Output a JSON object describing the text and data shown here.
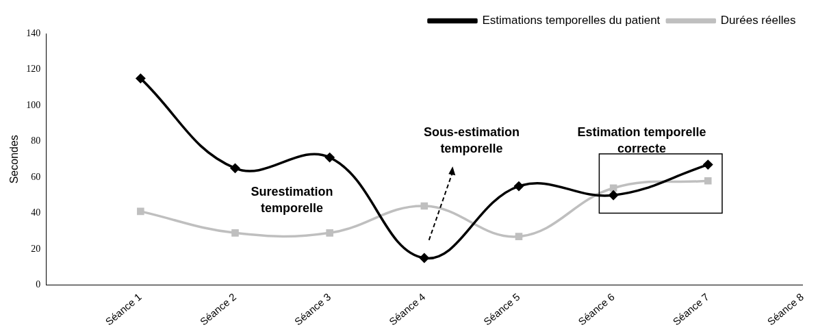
{
  "chart_data": {
    "type": "line",
    "ylabel": "Secondes",
    "categories": [
      "Séance 1",
      "Séance 2",
      "Séance 3",
      "Séance 4",
      "Séance 5",
      "Séance 6",
      "Séance 7",
      "Séance 8"
    ],
    "series": [
      {
        "name": "Estimations temporelles du patient",
        "color": "#000000",
        "marker": "diamond",
        "values": [
          115,
          65,
          71,
          15,
          55,
          50,
          67,
          null
        ]
      },
      {
        "name": "Durées réelles",
        "color": "#bfbfbf",
        "marker": "square",
        "values": [
          41,
          29,
          29,
          44,
          27,
          54,
          58,
          null
        ]
      }
    ],
    "ylim": [
      0,
      140
    ],
    "yticks": [
      0,
      20,
      40,
      60,
      80,
      100,
      120,
      140
    ],
    "grid": false,
    "legend": "top right",
    "line_style": "solid",
    "annotations": [
      "Surestimation temporelle",
      "Sous-estimation temporelle",
      "Estimation temporelle correcte"
    ]
  }
}
